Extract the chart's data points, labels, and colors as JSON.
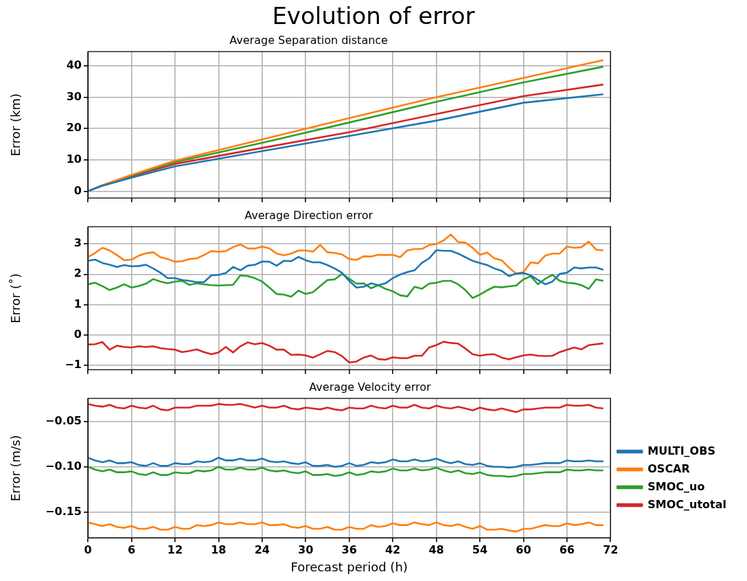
{
  "chart_data": [
    {
      "type": "line",
      "title": "Average Separation distance",
      "annotations": [
        "Evolution of error"
      ],
      "ylabel": "Error (km)",
      "xlim": [
        0,
        72
      ],
      "xticks": [
        0,
        6,
        12,
        18,
        24,
        30,
        36,
        42,
        48,
        54,
        60,
        66,
        72
      ],
      "ylim": [
        -2.2,
        44.5
      ],
      "yticks": [
        0,
        10,
        20,
        30,
        40
      ],
      "grid": true,
      "tick_labels": "y",
      "x": [
        0,
        2,
        6,
        12,
        24,
        36,
        48,
        60,
        71
      ],
      "series": [
        {
          "color": "#1f77b4",
          "values": [
            0,
            1.7,
            4.3,
            7.9,
            12.8,
            17.6,
            22.5,
            28.2,
            30.9
          ]
        },
        {
          "color": "#ff7f0e",
          "values": [
            0,
            1.9,
            5.2,
            9.7,
            16.5,
            23.3,
            30.0,
            36.1,
            41.8
          ]
        },
        {
          "color": "#2ca02c",
          "values": [
            0,
            1.9,
            5.0,
            9.3,
            15.4,
            21.9,
            28.5,
            34.7,
            39.7
          ]
        },
        {
          "color": "#d62728",
          "values": [
            0,
            1.8,
            4.7,
            8.7,
            13.8,
            18.8,
            24.6,
            30.3,
            34.0
          ]
        }
      ]
    },
    {
      "type": "line",
      "title": "Average Direction error",
      "ylabel": "Error (˚)",
      "xlim": [
        0,
        72
      ],
      "xticks": [
        0,
        6,
        12,
        18,
        24,
        30,
        36,
        42,
        48,
        54,
        60,
        66,
        72
      ],
      "ylim": [
        -1.14,
        3.56
      ],
      "yticks": [
        {
          "value": -1,
          "label": "−1"
        },
        0,
        1,
        2,
        3
      ],
      "grid": true,
      "tick_labels": "y",
      "x": [
        0,
        1,
        2,
        3,
        4,
        5,
        6,
        7,
        8,
        9,
        10,
        11,
        12,
        13,
        14,
        15,
        16,
        17,
        18,
        19,
        20,
        21,
        22,
        23,
        24,
        25,
        26,
        27,
        28,
        29,
        30,
        31,
        32,
        33,
        34,
        35,
        36,
        37,
        38,
        39,
        40,
        41,
        42,
        43,
        44,
        45,
        46,
        47,
        48,
        49,
        50,
        51,
        52,
        53,
        54,
        55,
        56,
        57,
        58,
        59,
        60,
        61,
        62,
        63,
        64,
        65,
        66,
        67,
        68,
        69,
        70,
        71
      ],
      "series": [
        {
          "color": "#1f77b4",
          "values": [
            2.44,
            2.48,
            2.37,
            2.31,
            2.24,
            2.3,
            2.26,
            2.27,
            2.31,
            2.19,
            2.05,
            1.87,
            1.87,
            1.81,
            1.78,
            1.74,
            1.74,
            1.96,
            1.98,
            2.04,
            2.24,
            2.13,
            2.28,
            2.31,
            2.42,
            2.41,
            2.28,
            2.44,
            2.43,
            2.57,
            2.46,
            2.39,
            2.39,
            2.3,
            2.19,
            2.05,
            1.78,
            1.56,
            1.59,
            1.7,
            1.64,
            1.7,
            1.87,
            1.99,
            2.07,
            2.13,
            2.37,
            2.52,
            2.79,
            2.77,
            2.77,
            2.68,
            2.56,
            2.44,
            2.37,
            2.3,
            2.19,
            2.11,
            1.94,
            2.02,
            2.04,
            1.96,
            1.81,
            1.67,
            1.76,
            2.01,
            2.05,
            2.22,
            2.19,
            2.22,
            2.22,
            2.15
          ]
        },
        {
          "color": "#ff7f0e",
          "values": [
            2.56,
            2.7,
            2.87,
            2.78,
            2.63,
            2.46,
            2.48,
            2.61,
            2.69,
            2.72,
            2.56,
            2.5,
            2.41,
            2.43,
            2.5,
            2.52,
            2.63,
            2.76,
            2.74,
            2.76,
            2.89,
            2.98,
            2.85,
            2.84,
            2.91,
            2.85,
            2.68,
            2.62,
            2.68,
            2.78,
            2.78,
            2.74,
            2.96,
            2.72,
            2.7,
            2.65,
            2.5,
            2.47,
            2.59,
            2.58,
            2.64,
            2.63,
            2.64,
            2.56,
            2.78,
            2.83,
            2.83,
            2.96,
            2.99,
            3.11,
            3.31,
            3.06,
            3.04,
            2.87,
            2.64,
            2.71,
            2.52,
            2.46,
            2.22,
            2.02,
            2.07,
            2.39,
            2.36,
            2.61,
            2.68,
            2.68,
            2.91,
            2.87,
            2.89,
            3.07,
            2.81,
            2.78
          ]
        },
        {
          "color": "#2ca02c",
          "values": [
            1.67,
            1.72,
            1.61,
            1.48,
            1.56,
            1.67,
            1.56,
            1.61,
            1.69,
            1.84,
            1.76,
            1.7,
            1.76,
            1.78,
            1.65,
            1.7,
            1.67,
            1.64,
            1.63,
            1.64,
            1.65,
            1.96,
            1.94,
            1.87,
            1.76,
            1.56,
            1.35,
            1.33,
            1.26,
            1.46,
            1.35,
            1.41,
            1.61,
            1.81,
            1.83,
            2.01,
            1.85,
            1.69,
            1.7,
            1.54,
            1.64,
            1.52,
            1.44,
            1.31,
            1.27,
            1.59,
            1.52,
            1.69,
            1.72,
            1.78,
            1.78,
            1.67,
            1.48,
            1.22,
            1.33,
            1.47,
            1.59,
            1.57,
            1.6,
            1.63,
            1.83,
            1.93,
            1.67,
            1.85,
            1.98,
            1.78,
            1.72,
            1.7,
            1.64,
            1.52,
            1.83,
            1.78
          ]
        },
        {
          "color": "#d62728",
          "values": [
            -0.31,
            -0.3,
            -0.23,
            -0.48,
            -0.35,
            -0.39,
            -0.41,
            -0.37,
            -0.39,
            -0.37,
            -0.43,
            -0.46,
            -0.48,
            -0.56,
            -0.52,
            -0.47,
            -0.56,
            -0.63,
            -0.57,
            -0.39,
            -0.57,
            -0.37,
            -0.24,
            -0.3,
            -0.26,
            -0.35,
            -0.48,
            -0.48,
            -0.65,
            -0.64,
            -0.67,
            -0.74,
            -0.63,
            -0.52,
            -0.56,
            -0.69,
            -0.9,
            -0.87,
            -0.74,
            -0.67,
            -0.79,
            -0.81,
            -0.73,
            -0.76,
            -0.76,
            -0.68,
            -0.68,
            -0.41,
            -0.33,
            -0.22,
            -0.26,
            -0.28,
            -0.44,
            -0.63,
            -0.68,
            -0.64,
            -0.63,
            -0.74,
            -0.8,
            -0.73,
            -0.67,
            -0.64,
            -0.68,
            -0.69,
            -0.68,
            -0.56,
            -0.48,
            -0.41,
            -0.47,
            -0.33,
            -0.3,
            -0.27
          ]
        }
      ]
    },
    {
      "type": "line",
      "title": "Average Velocity error",
      "xlabel": "Forecast period (h)",
      "ylabel": "Error (m/s)",
      "xlim": [
        0,
        72
      ],
      "xticks": [
        0,
        6,
        12,
        18,
        24,
        30,
        36,
        42,
        48,
        54,
        60,
        66,
        72
      ],
      "ylim": [
        -0.178,
        -0.025
      ],
      "yticks": [
        {
          "value": -0.15,
          "label": "−0.15"
        },
        {
          "value": -0.1,
          "label": "−0.10"
        },
        {
          "value": -0.05,
          "label": "−0.05"
        }
      ],
      "grid": true,
      "legend": "right",
      "x": [
        0,
        1,
        2,
        3,
        4,
        5,
        6,
        7,
        8,
        9,
        10,
        11,
        12,
        13,
        14,
        15,
        16,
        17,
        18,
        19,
        20,
        21,
        22,
        23,
        24,
        25,
        26,
        27,
        28,
        29,
        30,
        31,
        32,
        33,
        34,
        35,
        36,
        37,
        38,
        39,
        40,
        41,
        42,
        43,
        44,
        45,
        46,
        47,
        48,
        49,
        50,
        51,
        52,
        53,
        54,
        55,
        56,
        57,
        58,
        59,
        60,
        61,
        62,
        63,
        64,
        65,
        66,
        67,
        68,
        69,
        70,
        71
      ],
      "series": [
        {
          "name": "MULTI_OBS",
          "color": "#1f77b4",
          "values": [
            -0.09,
            -0.093,
            -0.095,
            -0.093,
            -0.096,
            -0.096,
            -0.095,
            -0.098,
            -0.099,
            -0.096,
            -0.099,
            -0.099,
            -0.096,
            -0.097,
            -0.097,
            -0.094,
            -0.095,
            -0.094,
            -0.09,
            -0.093,
            -0.093,
            -0.091,
            -0.093,
            -0.093,
            -0.091,
            -0.094,
            -0.095,
            -0.094,
            -0.096,
            -0.097,
            -0.095,
            -0.099,
            -0.099,
            -0.098,
            -0.1,
            -0.099,
            -0.096,
            -0.099,
            -0.098,
            -0.095,
            -0.096,
            -0.095,
            -0.092,
            -0.094,
            -0.094,
            -0.092,
            -0.094,
            -0.093,
            -0.091,
            -0.094,
            -0.096,
            -0.094,
            -0.097,
            -0.098,
            -0.096,
            -0.099,
            -0.1,
            -0.1,
            -0.101,
            -0.1,
            -0.098,
            -0.098,
            -0.097,
            -0.096,
            -0.096,
            -0.096,
            -0.093,
            -0.094,
            -0.094,
            -0.093,
            -0.094,
            -0.094
          ]
        },
        {
          "name": "OSCAR",
          "color": "#ff7f0e",
          "values": [
            -0.161,
            -0.163,
            -0.165,
            -0.163,
            -0.166,
            -0.167,
            -0.165,
            -0.168,
            -0.168,
            -0.166,
            -0.169,
            -0.169,
            -0.166,
            -0.168,
            -0.168,
            -0.164,
            -0.165,
            -0.164,
            -0.161,
            -0.163,
            -0.163,
            -0.161,
            -0.163,
            -0.163,
            -0.161,
            -0.164,
            -0.164,
            -0.163,
            -0.166,
            -0.167,
            -0.165,
            -0.168,
            -0.168,
            -0.166,
            -0.169,
            -0.169,
            -0.166,
            -0.168,
            -0.168,
            -0.164,
            -0.166,
            -0.165,
            -0.162,
            -0.164,
            -0.164,
            -0.161,
            -0.163,
            -0.164,
            -0.161,
            -0.164,
            -0.165,
            -0.163,
            -0.166,
            -0.168,
            -0.165,
            -0.169,
            -0.169,
            -0.168,
            -0.17,
            -0.171,
            -0.168,
            -0.168,
            -0.166,
            -0.164,
            -0.165,
            -0.165,
            -0.162,
            -0.164,
            -0.163,
            -0.161,
            -0.164,
            -0.164
          ]
        },
        {
          "name": "SMOC_uo",
          "color": "#2ca02c",
          "values": [
            -0.1,
            -0.103,
            -0.105,
            -0.103,
            -0.106,
            -0.106,
            -0.105,
            -0.108,
            -0.109,
            -0.106,
            -0.109,
            -0.109,
            -0.106,
            -0.107,
            -0.107,
            -0.104,
            -0.105,
            -0.104,
            -0.1,
            -0.103,
            -0.103,
            -0.101,
            -0.103,
            -0.103,
            -0.101,
            -0.104,
            -0.105,
            -0.104,
            -0.106,
            -0.107,
            -0.105,
            -0.109,
            -0.109,
            -0.108,
            -0.11,
            -0.109,
            -0.106,
            -0.109,
            -0.108,
            -0.105,
            -0.106,
            -0.105,
            -0.102,
            -0.104,
            -0.104,
            -0.102,
            -0.104,
            -0.103,
            -0.101,
            -0.104,
            -0.106,
            -0.104,
            -0.107,
            -0.108,
            -0.106,
            -0.109,
            -0.11,
            -0.11,
            -0.111,
            -0.11,
            -0.108,
            -0.108,
            -0.107,
            -0.106,
            -0.106,
            -0.106,
            -0.103,
            -0.104,
            -0.104,
            -0.103,
            -0.104,
            -0.104
          ]
        },
        {
          "name": "SMOC_utotal",
          "color": "#d62728",
          "values": [
            -0.031,
            -0.033,
            -0.034,
            -0.032,
            -0.035,
            -0.036,
            -0.033,
            -0.035,
            -0.036,
            -0.033,
            -0.037,
            -0.038,
            -0.035,
            -0.035,
            -0.035,
            -0.033,
            -0.033,
            -0.033,
            -0.031,
            -0.032,
            -0.032,
            -0.031,
            -0.033,
            -0.035,
            -0.033,
            -0.035,
            -0.035,
            -0.033,
            -0.036,
            -0.037,
            -0.035,
            -0.036,
            -0.037,
            -0.035,
            -0.037,
            -0.038,
            -0.035,
            -0.036,
            -0.036,
            -0.033,
            -0.035,
            -0.036,
            -0.033,
            -0.035,
            -0.035,
            -0.032,
            -0.035,
            -0.036,
            -0.033,
            -0.035,
            -0.036,
            -0.034,
            -0.036,
            -0.038,
            -0.035,
            -0.037,
            -0.038,
            -0.036,
            -0.038,
            -0.04,
            -0.037,
            -0.037,
            -0.036,
            -0.035,
            -0.035,
            -0.035,
            -0.032,
            -0.033,
            -0.033,
            -0.032,
            -0.035,
            -0.036
          ]
        }
      ]
    }
  ]
}
